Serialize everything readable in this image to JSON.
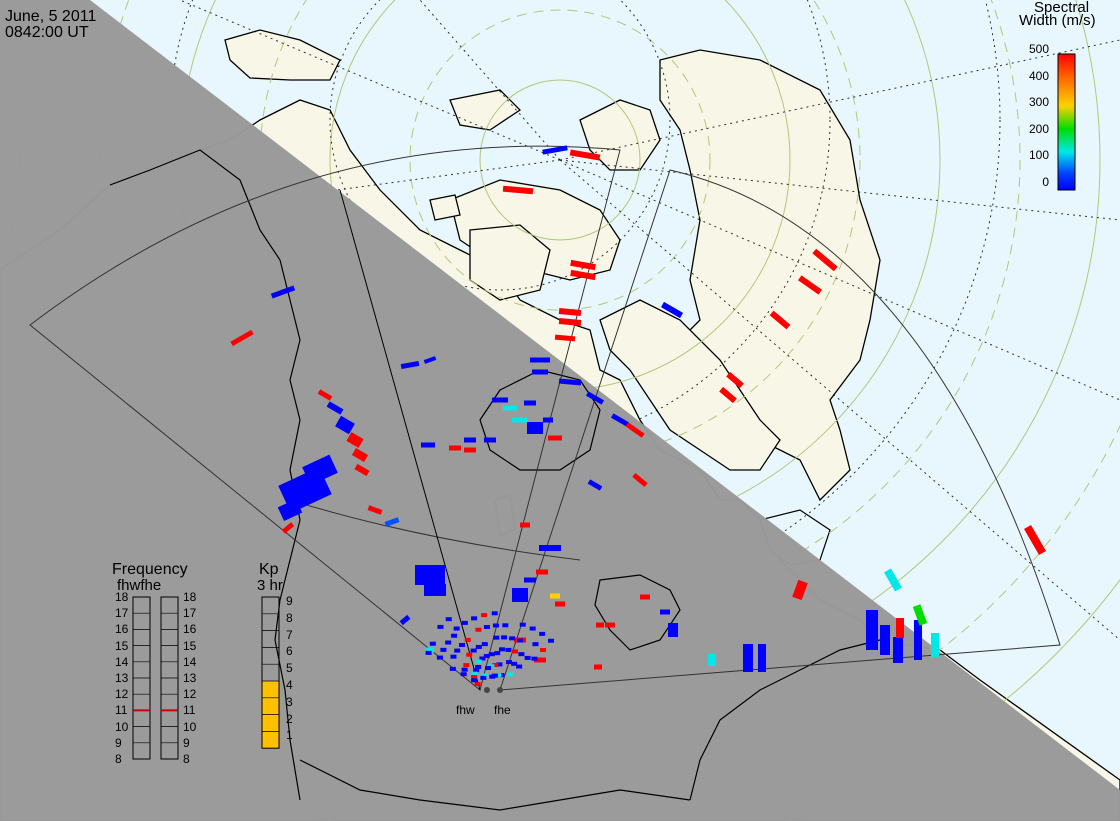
{
  "header": {
    "date": "June, 5 2011",
    "time": "0842:00 UT"
  },
  "colorbar": {
    "title_line1": "Spectral",
    "title_line2": "Width (m/s)",
    "ticks": [
      "500",
      "400",
      "300",
      "200",
      "100",
      "0"
    ],
    "gradient": [
      "#ff0000",
      "#ff6a00",
      "#ffd000",
      "#00dd00",
      "#00e8e8",
      "#0040ff",
      "#0000ff"
    ]
  },
  "frequency_panel": {
    "title": "Frequency",
    "subtitle": "fhwfhe",
    "ticks": [
      "18",
      "17",
      "16",
      "15",
      "14",
      "13",
      "12",
      "11",
      "10",
      "9",
      "8"
    ],
    "fhw_mhz": 11,
    "fhe_mhz": 11,
    "indicator_color": "#cc0000"
  },
  "kp_panel": {
    "title": "Kp",
    "subtitle": "3 hr",
    "ticks": [
      "9",
      "8",
      "7",
      "6",
      "5",
      "4",
      "3",
      "2",
      "1"
    ],
    "value": 4,
    "fill_color": "#ffc000"
  },
  "radars": [
    {
      "id": "fhw",
      "label": "fhw"
    },
    {
      "id": "fhe",
      "label": "fhe"
    }
  ],
  "colors": {
    "ocean": "#e8f7fd",
    "land": "#f8f7e7",
    "night": "#999999",
    "coast": "#000000",
    "grid_solid": "#b3c67a",
    "grid_dashed": "#b3c67a",
    "grid_dotted": "#000000"
  }
}
